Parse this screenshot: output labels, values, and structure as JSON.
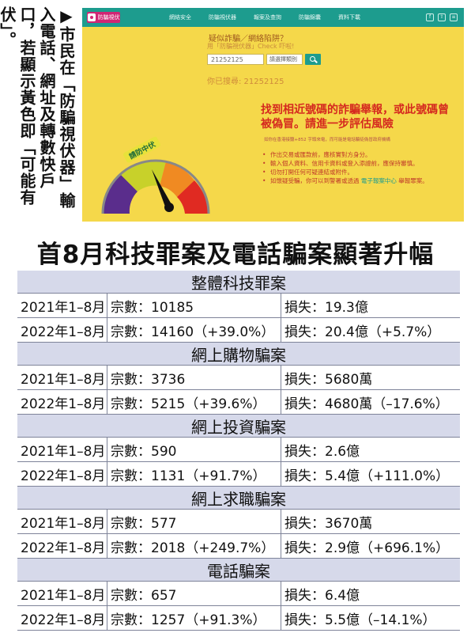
{
  "caption": "▶市民在「防騙視伏器」輸入電話、網址及轉數快戶口，若顯示黃色即「可能有伏」。",
  "screenshot": {
    "nav": {
      "logo": "防騙視伏",
      "items": [
        "網絡安全",
        "防騙視伏器",
        "報案及查詢",
        "防騙錦囊",
        "資料下載"
      ]
    },
    "question": "疑似詐騙／網絡陷阱？",
    "subquestion": "用「防騙視伏器」Check 吓啦!",
    "search_value": "21252125",
    "select_value": "請選擇類別",
    "searched": "你已搜尋: 21252125",
    "headline": "找到相近號碼的詐騙舉報，或此號碼曾被偽冒。請進一步評估風險",
    "fineprint": "如你在香港接聽+852 字頭來電，而可能是電話騙徒偽冒政府機構",
    "bullets": [
      "作出交易或匯款前，應核實對方身分。",
      "輸入個人資料、信用卡資料或登入添證前，應保持審慎。",
      "切勿打開任何可疑連結或附件。"
    ],
    "bullet_last_prefix": "如懷疑受騙，你可以到警署或透過 ",
    "bullet_last_link": "電子報案中心",
    "bullet_last_suffix": " 舉報罪案。",
    "gauge_label": "請防中伏"
  },
  "title": "首8月科技罪案及電話騙案顯著升幅",
  "sections": [
    {
      "name": "整體科技罪案",
      "rows": [
        {
          "period": "2021年1–8月",
          "cases": "宗數：10185",
          "loss": "損失：19.3億"
        },
        {
          "period": "2022年1–8月",
          "cases": "宗數：14160（+39.0%）",
          "loss": "損失：20.4億（+5.7%）"
        }
      ]
    },
    {
      "name": "網上購物騙案",
      "rows": [
        {
          "period": "2021年1–8月",
          "cases": "宗數：3736",
          "loss": "損失：5680萬"
        },
        {
          "period": "2022年1–8月",
          "cases": "宗數：5215（+39.6%）",
          "loss": "損失：4680萬（–17.6%）"
        }
      ]
    },
    {
      "name": "網上投資騙案",
      "rows": [
        {
          "period": "2021年1–8月",
          "cases": "宗數：590",
          "loss": "損失：2.6億"
        },
        {
          "period": "2022年1–8月",
          "cases": "宗數：1131（+91.7%）",
          "loss": "損失：5.4億（+111.0%）"
        }
      ]
    },
    {
      "name": "網上求職騙案",
      "rows": [
        {
          "period": "2021年1–8月",
          "cases": "宗數：577",
          "loss": "損失：3670萬"
        },
        {
          "period": "2022年1–8月",
          "cases": "宗數：2018（+249.7%）",
          "loss": "損失：2.9億（+696.1%）"
        }
      ]
    },
    {
      "name": "電話騙案",
      "rows": [
        {
          "period": "2021年1–8月",
          "cases": "宗數：657",
          "loss": "損失：6.4億"
        },
        {
          "period": "2022年1–8月",
          "cases": "宗數：1257（+91.3%）",
          "loss": "損失：5.5億（–14.1%）"
        }
      ]
    }
  ]
}
